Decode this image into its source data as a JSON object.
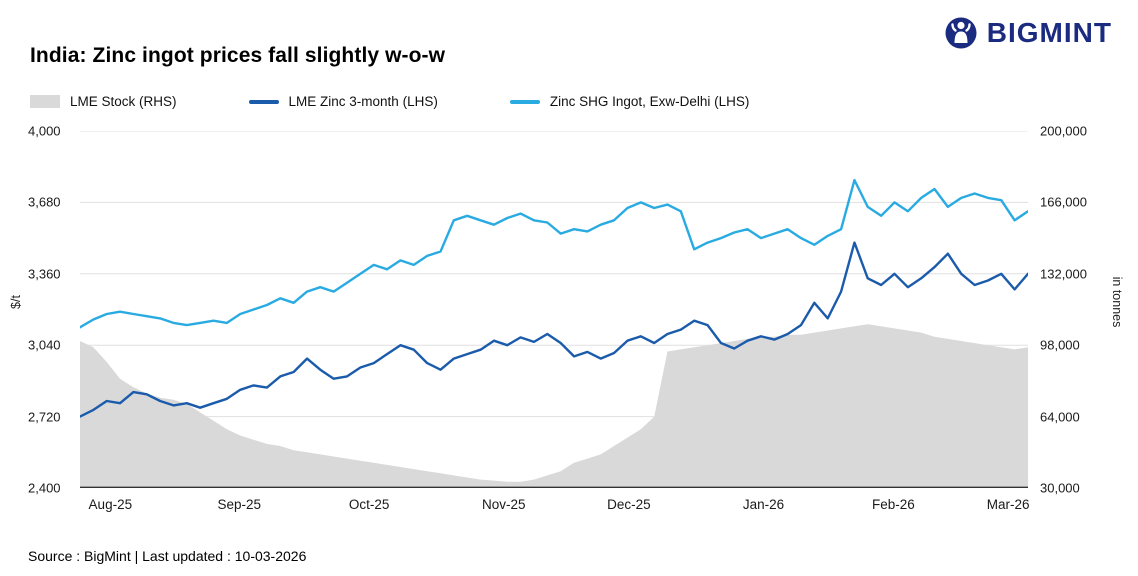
{
  "header": {
    "title": "India: Zinc ingot prices fall slightly w-o-w",
    "brand": "BIGMINT"
  },
  "legend": [
    {
      "label": "LME Stock (RHS)",
      "type": "area",
      "color": "#d9d9d9"
    },
    {
      "label": "LME  Zinc  3-month (LHS)",
      "type": "line",
      "color": "#1b5bab"
    },
    {
      "label": "Zinc SHG Ingot, Exw-Delhi (LHS)",
      "type": "line",
      "color": "#29abe2"
    }
  ],
  "footer": {
    "source": "Source : BigMint | Last updated : 10-03-2026"
  },
  "chart_data": {
    "type": "line",
    "title": "India: Zinc ingot prices fall slightly w-o-w",
    "ylabel_left": "$/t",
    "ylabel_right": "in tonnes",
    "ylim_left": [
      2400,
      4000
    ],
    "ylim_right": [
      30000,
      200000
    ],
    "grid": "horizontal",
    "legend_position": "top-left",
    "yticks_left": [
      "4,000",
      "3,680",
      "3,360",
      "3,040",
      "2,720",
      "2,400"
    ],
    "yticks_right": [
      "200,000",
      "166,000",
      "132,000",
      "98,000",
      "64,000",
      "30,000"
    ],
    "xticks": [
      "Aug-25",
      "Sep-25",
      "Oct-25",
      "Nov-25",
      "Dec-25",
      "Jan-26",
      "Feb-26",
      "Mar-26"
    ],
    "series": [
      {
        "name": "LME Stock (RHS)",
        "axis": "right",
        "type": "area",
        "color": "#d9d9d9",
        "values": [
          100000,
          97000,
          90000,
          82000,
          78000,
          75000,
          73000,
          72000,
          70000,
          66000,
          62000,
          58000,
          55000,
          53000,
          51000,
          50000,
          48000,
          47000,
          46000,
          45000,
          44000,
          43000,
          42000,
          41000,
          40000,
          39000,
          38000,
          37000,
          36000,
          35000,
          34000,
          33500,
          33000,
          33000,
          34000,
          36000,
          38000,
          42000,
          44000,
          46000,
          50000,
          54000,
          58000,
          64000,
          95000,
          96000,
          97000,
          98000,
          99000,
          100000,
          101000,
          102000,
          102000,
          103000,
          103000,
          104000,
          105000,
          106000,
          107000,
          108000,
          107000,
          106000,
          105000,
          104000,
          102000,
          101000,
          100000,
          99000,
          98000,
          97000,
          96000,
          97000
        ]
      },
      {
        "name": "LME Zinc 3-month (LHS)",
        "axis": "left",
        "type": "line",
        "color": "#1b5bab",
        "values": [
          2720,
          2750,
          2790,
          2780,
          2830,
          2820,
          2790,
          2770,
          2780,
          2760,
          2780,
          2800,
          2840,
          2860,
          2850,
          2900,
          2920,
          2980,
          2930,
          2890,
          2900,
          2940,
          2960,
          3000,
          3040,
          3020,
          2960,
          2930,
          2980,
          3000,
          3020,
          3060,
          3040,
          3075,
          3055,
          3090,
          3050,
          2990,
          3010,
          2980,
          3005,
          3060,
          3080,
          3050,
          3090,
          3110,
          3150,
          3130,
          3050,
          3025,
          3060,
          3080,
          3065,
          3090,
          3130,
          3230,
          3160,
          3280,
          3500,
          3340,
          3310,
          3360,
          3300,
          3340,
          3390,
          3450,
          3360,
          3310,
          3330,
          3360,
          3290,
          3360
        ]
      },
      {
        "name": "Zinc SHG Ingot, Exw-Delhi (LHS)",
        "axis": "left",
        "type": "line",
        "color": "#29abe2",
        "values": [
          3120,
          3155,
          3180,
          3190,
          3180,
          3170,
          3160,
          3140,
          3130,
          3140,
          3150,
          3140,
          3180,
          3200,
          3220,
          3250,
          3230,
          3280,
          3300,
          3280,
          3320,
          3360,
          3400,
          3380,
          3420,
          3400,
          3440,
          3460,
          3600,
          3620,
          3600,
          3580,
          3610,
          3630,
          3600,
          3590,
          3540,
          3560,
          3550,
          3580,
          3600,
          3655,
          3680,
          3655,
          3670,
          3640,
          3470,
          3500,
          3520,
          3545,
          3560,
          3520,
          3540,
          3560,
          3520,
          3490,
          3530,
          3560,
          3780,
          3660,
          3620,
          3680,
          3640,
          3700,
          3740,
          3660,
          3700,
          3720,
          3700,
          3690,
          3600,
          3640
        ]
      }
    ]
  }
}
